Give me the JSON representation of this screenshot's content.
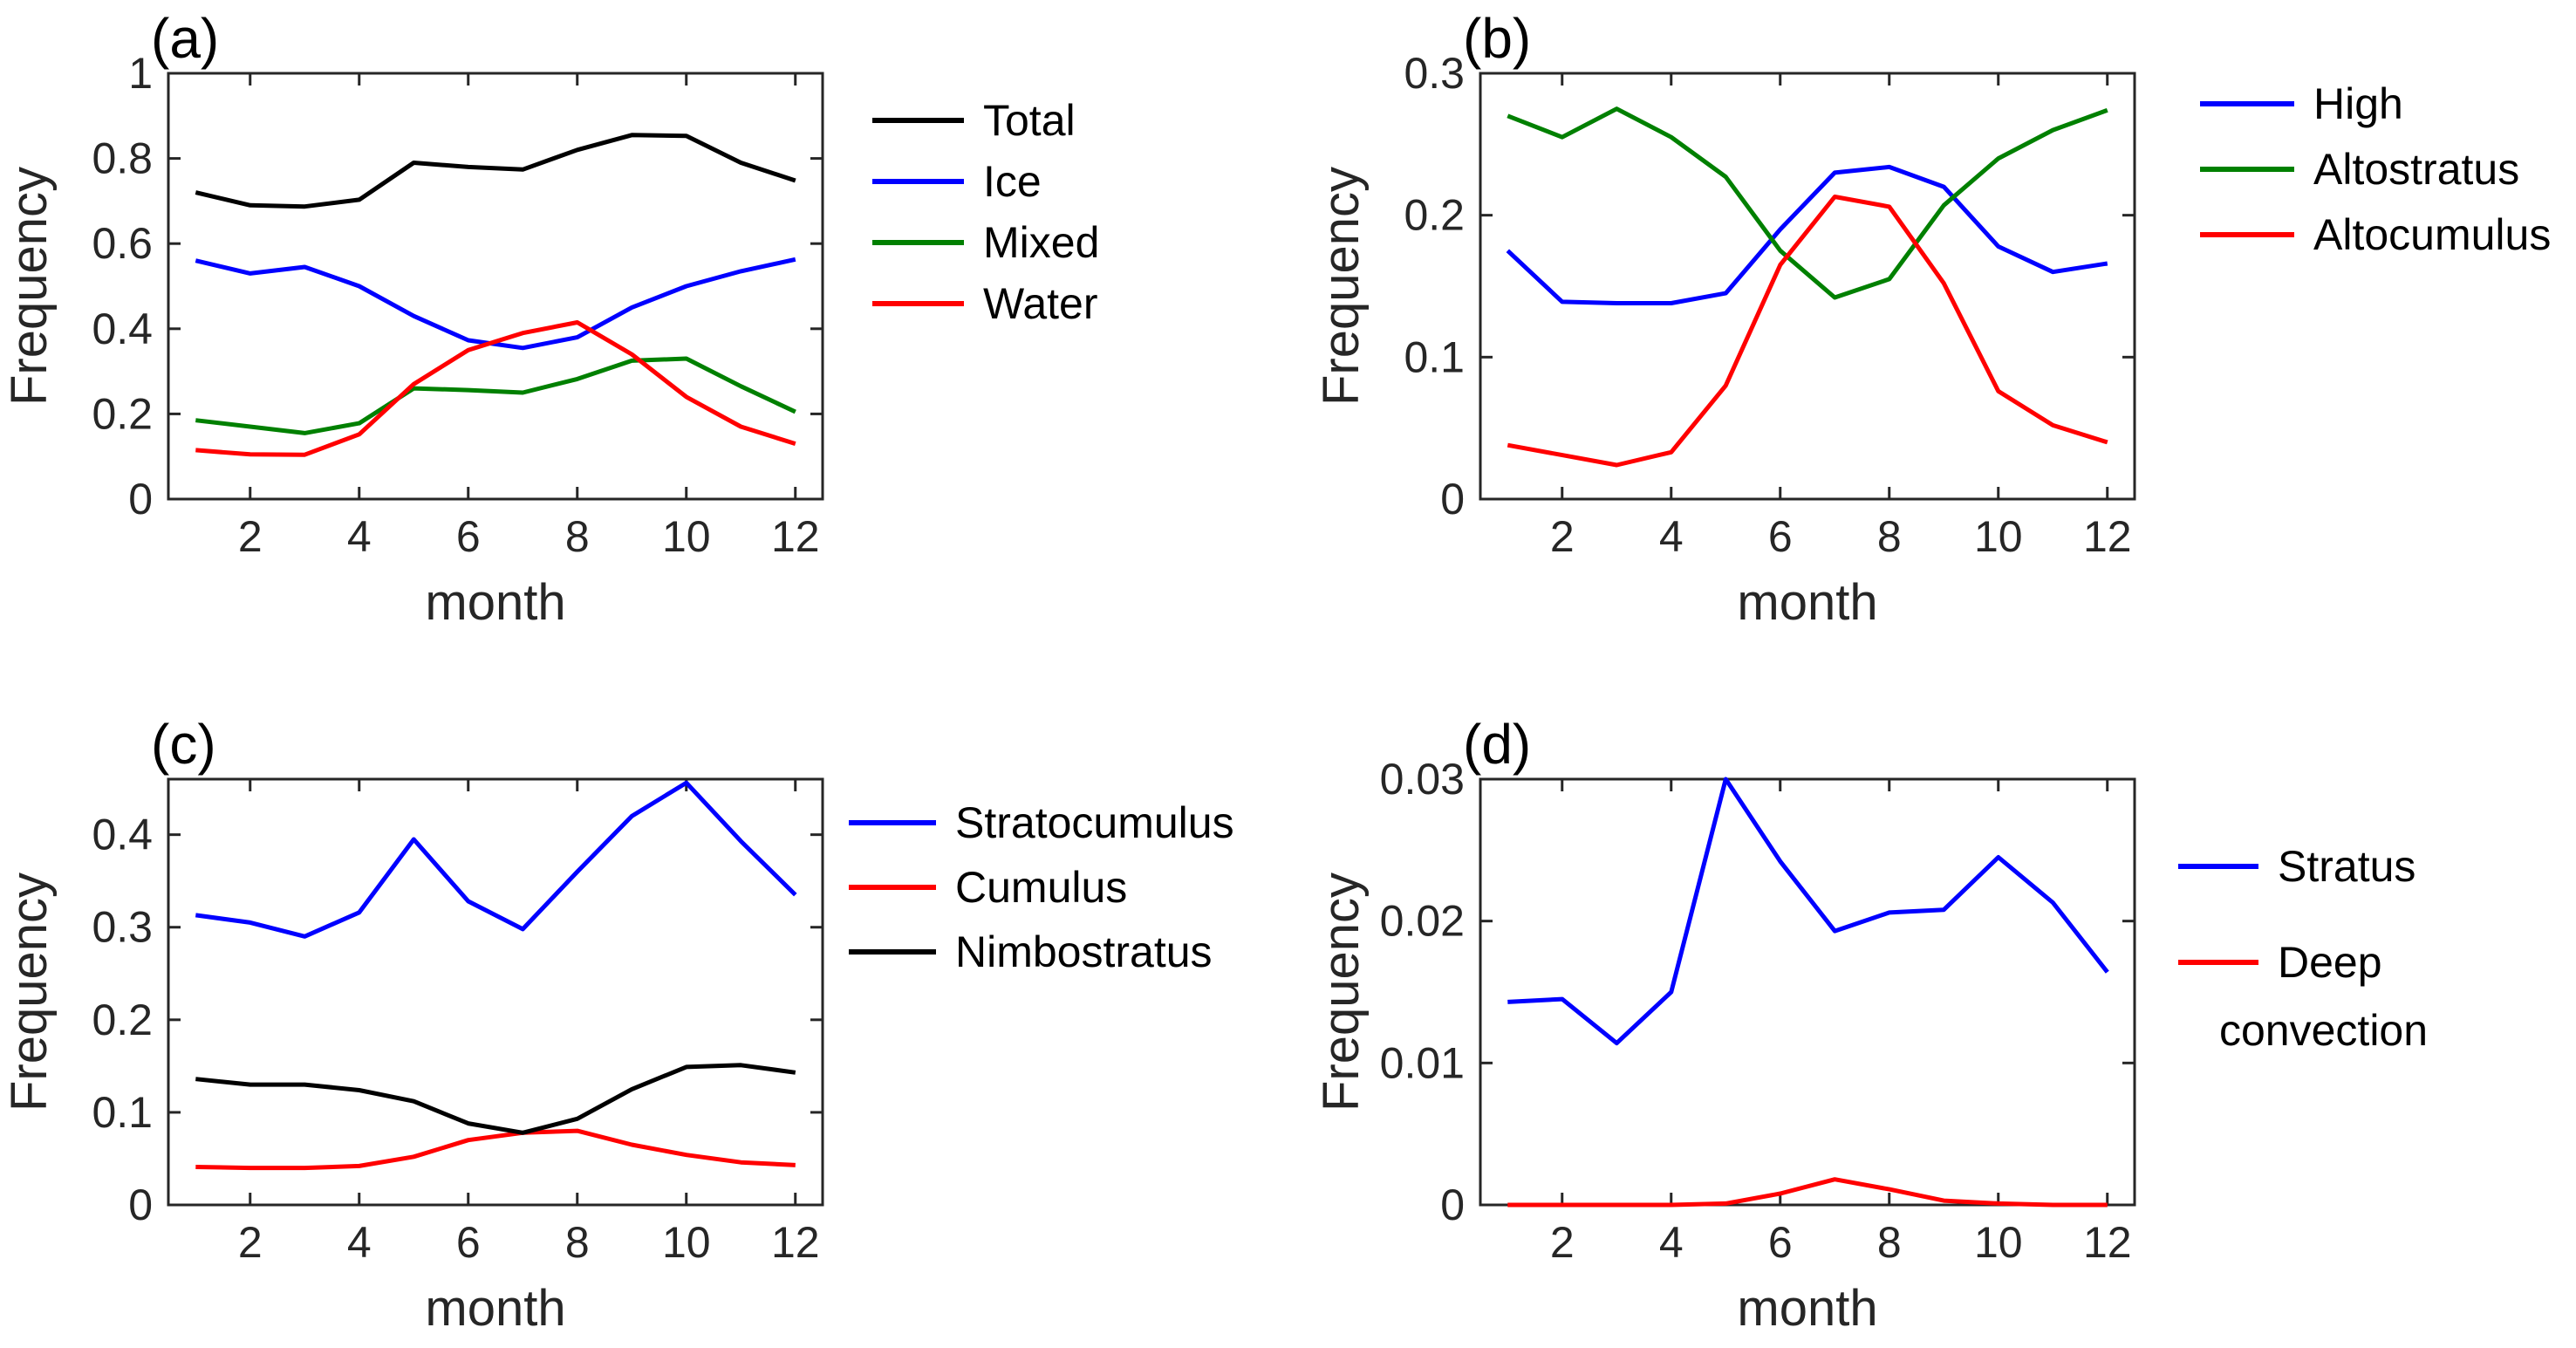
{
  "chart_data": [
    {
      "type": "line",
      "panel_label": "(a)",
      "xlabel": "month",
      "ylabel": "Frequency",
      "xlim": [
        0.5,
        12.5
      ],
      "ylim": [
        0,
        1
      ],
      "xticks": [
        2,
        4,
        6,
        8,
        10,
        12
      ],
      "yticks": [
        0,
        0.2,
        0.4,
        0.6,
        0.8,
        1
      ],
      "ytick_labels": [
        "0",
        "0.2",
        "0.4",
        "0.6",
        "0.8",
        "1"
      ],
      "grid": false,
      "legend_position": "outside-right",
      "x": [
        1,
        2,
        3,
        4,
        5,
        6,
        7,
        8,
        9,
        10,
        11,
        12
      ],
      "series": [
        {
          "name": "Total",
          "color": "#000000",
          "values": [
            0.72,
            0.69,
            0.687,
            0.703,
            0.79,
            0.78,
            0.774,
            0.82,
            0.855,
            0.853,
            0.79,
            0.748
          ]
        },
        {
          "name": "Ice",
          "color": "#0000ff",
          "values": [
            0.56,
            0.53,
            0.545,
            0.5,
            0.43,
            0.373,
            0.355,
            0.38,
            0.45,
            0.5,
            0.535,
            0.563
          ]
        },
        {
          "name": "Mixed",
          "color": "#008000",
          "values": [
            0.185,
            0.17,
            0.155,
            0.178,
            0.26,
            0.256,
            0.25,
            0.282,
            0.325,
            0.33,
            0.265,
            0.205
          ]
        },
        {
          "name": "Water",
          "color": "#ff0000",
          "values": [
            0.115,
            0.105,
            0.104,
            0.152,
            0.27,
            0.35,
            0.39,
            0.415,
            0.34,
            0.24,
            0.17,
            0.13
          ]
        }
      ]
    },
    {
      "type": "line",
      "panel_label": "(b)",
      "xlabel": "month",
      "ylabel": "Frequency",
      "xlim": [
        0.5,
        12.5
      ],
      "ylim": [
        0,
        0.3
      ],
      "xticks": [
        2,
        4,
        6,
        8,
        10,
        12
      ],
      "yticks": [
        0,
        0.1,
        0.2,
        0.3
      ],
      "ytick_labels": [
        "0",
        "0.1",
        "0.2",
        "0.3"
      ],
      "grid": false,
      "legend_position": "outside-right",
      "x": [
        1,
        2,
        3,
        4,
        5,
        6,
        7,
        8,
        9,
        10,
        11,
        12
      ],
      "series": [
        {
          "name": "High",
          "color": "#0000ff",
          "values": [
            0.175,
            0.139,
            0.138,
            0.138,
            0.145,
            0.19,
            0.23,
            0.234,
            0.22,
            0.178,
            0.16,
            0.166
          ]
        },
        {
          "name": "Altostratus",
          "color": "#008000",
          "values": [
            0.27,
            0.255,
            0.275,
            0.255,
            0.227,
            0.175,
            0.142,
            0.155,
            0.207,
            0.24,
            0.26,
            0.274
          ]
        },
        {
          "name": "Altocumulus",
          "color": "#ff0000",
          "values": [
            0.038,
            0.031,
            0.024,
            0.033,
            0.08,
            0.165,
            0.213,
            0.206,
            0.152,
            0.076,
            0.052,
            0.04
          ]
        }
      ]
    },
    {
      "type": "line",
      "panel_label": "(c)",
      "xlabel": "month",
      "ylabel": "Frequency",
      "xlim": [
        0.5,
        12.5
      ],
      "ylim": [
        0,
        0.46
      ],
      "xticks": [
        2,
        4,
        6,
        8,
        10,
        12
      ],
      "yticks": [
        0,
        0.1,
        0.2,
        0.3,
        0.4
      ],
      "ytick_labels": [
        "0",
        "0.1",
        "0.2",
        "0.3",
        "0.4"
      ],
      "grid": false,
      "legend_position": "outside-right",
      "x": [
        1,
        2,
        3,
        4,
        5,
        6,
        7,
        8,
        9,
        10,
        11,
        12
      ],
      "series": [
        {
          "name": "Stratocumulus",
          "color": "#0000ff",
          "values": [
            0.313,
            0.305,
            0.29,
            0.316,
            0.395,
            0.328,
            0.298,
            0.36,
            0.42,
            0.456,
            0.393,
            0.335
          ]
        },
        {
          "name": "Cumulus",
          "color": "#ff0000",
          "values": [
            0.041,
            0.04,
            0.04,
            0.042,
            0.052,
            0.07,
            0.078,
            0.08,
            0.065,
            0.054,
            0.046,
            0.043
          ]
        },
        {
          "name": "Nimbostratus",
          "color": "#000000",
          "values": [
            0.136,
            0.13,
            0.13,
            0.124,
            0.112,
            0.088,
            0.078,
            0.093,
            0.125,
            0.149,
            0.151,
            0.143
          ]
        }
      ]
    },
    {
      "type": "line",
      "panel_label": "(d)",
      "xlabel": "month",
      "ylabel": "Frequency",
      "xlim": [
        0.5,
        12.5
      ],
      "ylim": [
        0,
        0.03
      ],
      "xticks": [
        2,
        4,
        6,
        8,
        10,
        12
      ],
      "yticks": [
        0,
        0.01,
        0.02,
        0.03
      ],
      "ytick_labels": [
        "0",
        "0.01",
        "0.02",
        "0.03"
      ],
      "grid": false,
      "legend_position": "outside-right",
      "x": [
        1,
        2,
        3,
        4,
        5,
        6,
        7,
        8,
        9,
        10,
        11,
        12
      ],
      "series": [
        {
          "name": "Stratus",
          "color": "#0000ff",
          "values": [
            0.0143,
            0.0145,
            0.0114,
            0.015,
            0.03,
            0.0242,
            0.0193,
            0.0206,
            0.0208,
            0.0245,
            0.0213,
            0.0164
          ]
        },
        {
          "name": "Deep convection",
          "name_lines": [
            "Deep",
            "convection"
          ],
          "color": "#ff0000",
          "values": [
            0.0,
            0.0,
            0.0,
            0.0,
            0.0001,
            0.0008,
            0.0018,
            0.0011,
            0.0003,
            0.0001,
            0.0,
            0.0
          ]
        }
      ]
    }
  ]
}
